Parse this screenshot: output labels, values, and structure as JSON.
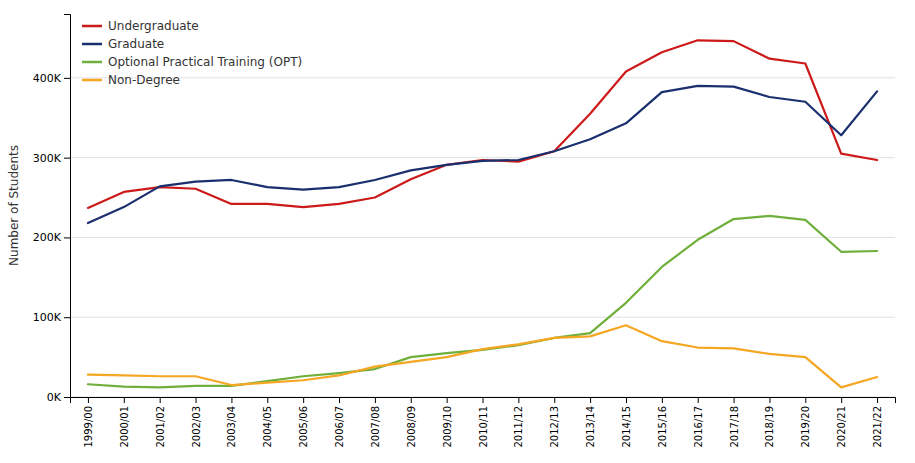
{
  "chart_data": {
    "type": "line",
    "categories": [
      "1999/00",
      "2000/01",
      "2001/02",
      "2002/03",
      "2003/04",
      "2004/05",
      "2005/06",
      "2006/07",
      "2007/08",
      "2008/09",
      "2009/10",
      "2010/11",
      "2011/12",
      "2012/13",
      "2013/14",
      "2014/15",
      "2015/16",
      "2016/17",
      "2017/18",
      "2018/19",
      "2019/20",
      "2020/21",
      "2021/22"
    ],
    "series": [
      {
        "name": "Undergraduate",
        "color": "#CC1A1A",
        "values": [
          237000,
          257000,
          263000,
          261000,
          242000,
          242000,
          238000,
          242000,
          250000,
          273000,
          291000,
          297000,
          295000,
          308000,
          355000,
          408000,
          432000,
          447000,
          446000,
          424000,
          418000,
          305000,
          297000
        ]
      },
      {
        "name": "Graduate",
        "color": "#1A2F6E",
        "values": [
          218000,
          238000,
          264000,
          270000,
          272000,
          263000,
          260000,
          263000,
          272000,
          284000,
          291000,
          296000,
          297000,
          308000,
          323000,
          343000,
          382000,
          390000,
          389000,
          376000,
          370000,
          328000,
          383000
        ]
      },
      {
        "name": "Optional Practical Training (OPT)",
        "color": "#6FAF3B",
        "values": [
          16000,
          13000,
          12000,
          14000,
          14000,
          20000,
          26000,
          30000,
          35000,
          50000,
          55000,
          59000,
          65000,
          74000,
          80000,
          118000,
          163000,
          197000,
          223000,
          227000,
          222000,
          182000,
          183000
        ]
      },
      {
        "name": "Non-Degree",
        "color": "#F5A623",
        "values": [
          28000,
          27000,
          26000,
          26000,
          15000,
          18000,
          21000,
          27000,
          38000,
          44000,
          50000,
          60000,
          66000,
          74000,
          76000,
          90000,
          70000,
          62000,
          61000,
          54000,
          50000,
          12000,
          25000
        ]
      }
    ],
    "y_label": "Number of Students",
    "ylim": [
      0,
      480000
    ],
    "yticks": [
      {
        "value": 0,
        "label": "0K"
      },
      {
        "value": 100000,
        "label": "100K"
      },
      {
        "value": 200000,
        "label": "200K"
      },
      {
        "value": 300000,
        "label": "300K"
      },
      {
        "value": 400000,
        "label": "400K"
      }
    ],
    "grid": true,
    "legend": "upper left"
  }
}
